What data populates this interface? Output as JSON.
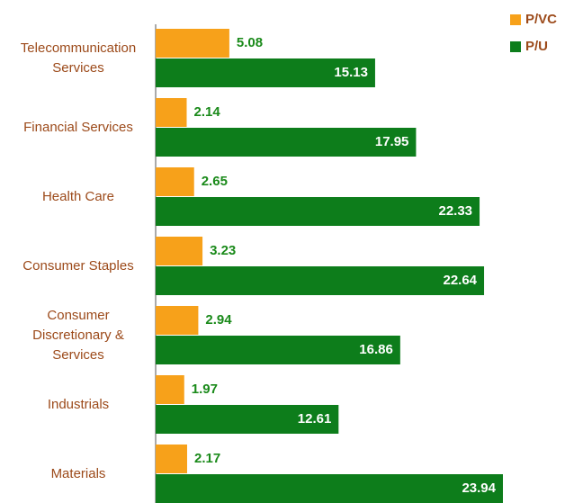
{
  "chart_data": {
    "type": "hbar",
    "categories": [
      "Telecommunication Services",
      "Financial Services",
      "Health Care",
      "Consumer Staples",
      "Consumer Discretionary & Services",
      "Industrials",
      "Materials"
    ],
    "series": [
      {
        "name": "P/VC",
        "color": "#f7a11a",
        "values": [
          5.08,
          2.14,
          2.65,
          3.23,
          2.94,
          1.97,
          2.17
        ]
      },
      {
        "name": "P/U",
        "color": "#0d7d1b",
        "values": [
          15.13,
          17.95,
          22.33,
          22.64,
          16.86,
          12.61,
          23.94
        ]
      }
    ],
    "legend": "top-right"
  }
}
